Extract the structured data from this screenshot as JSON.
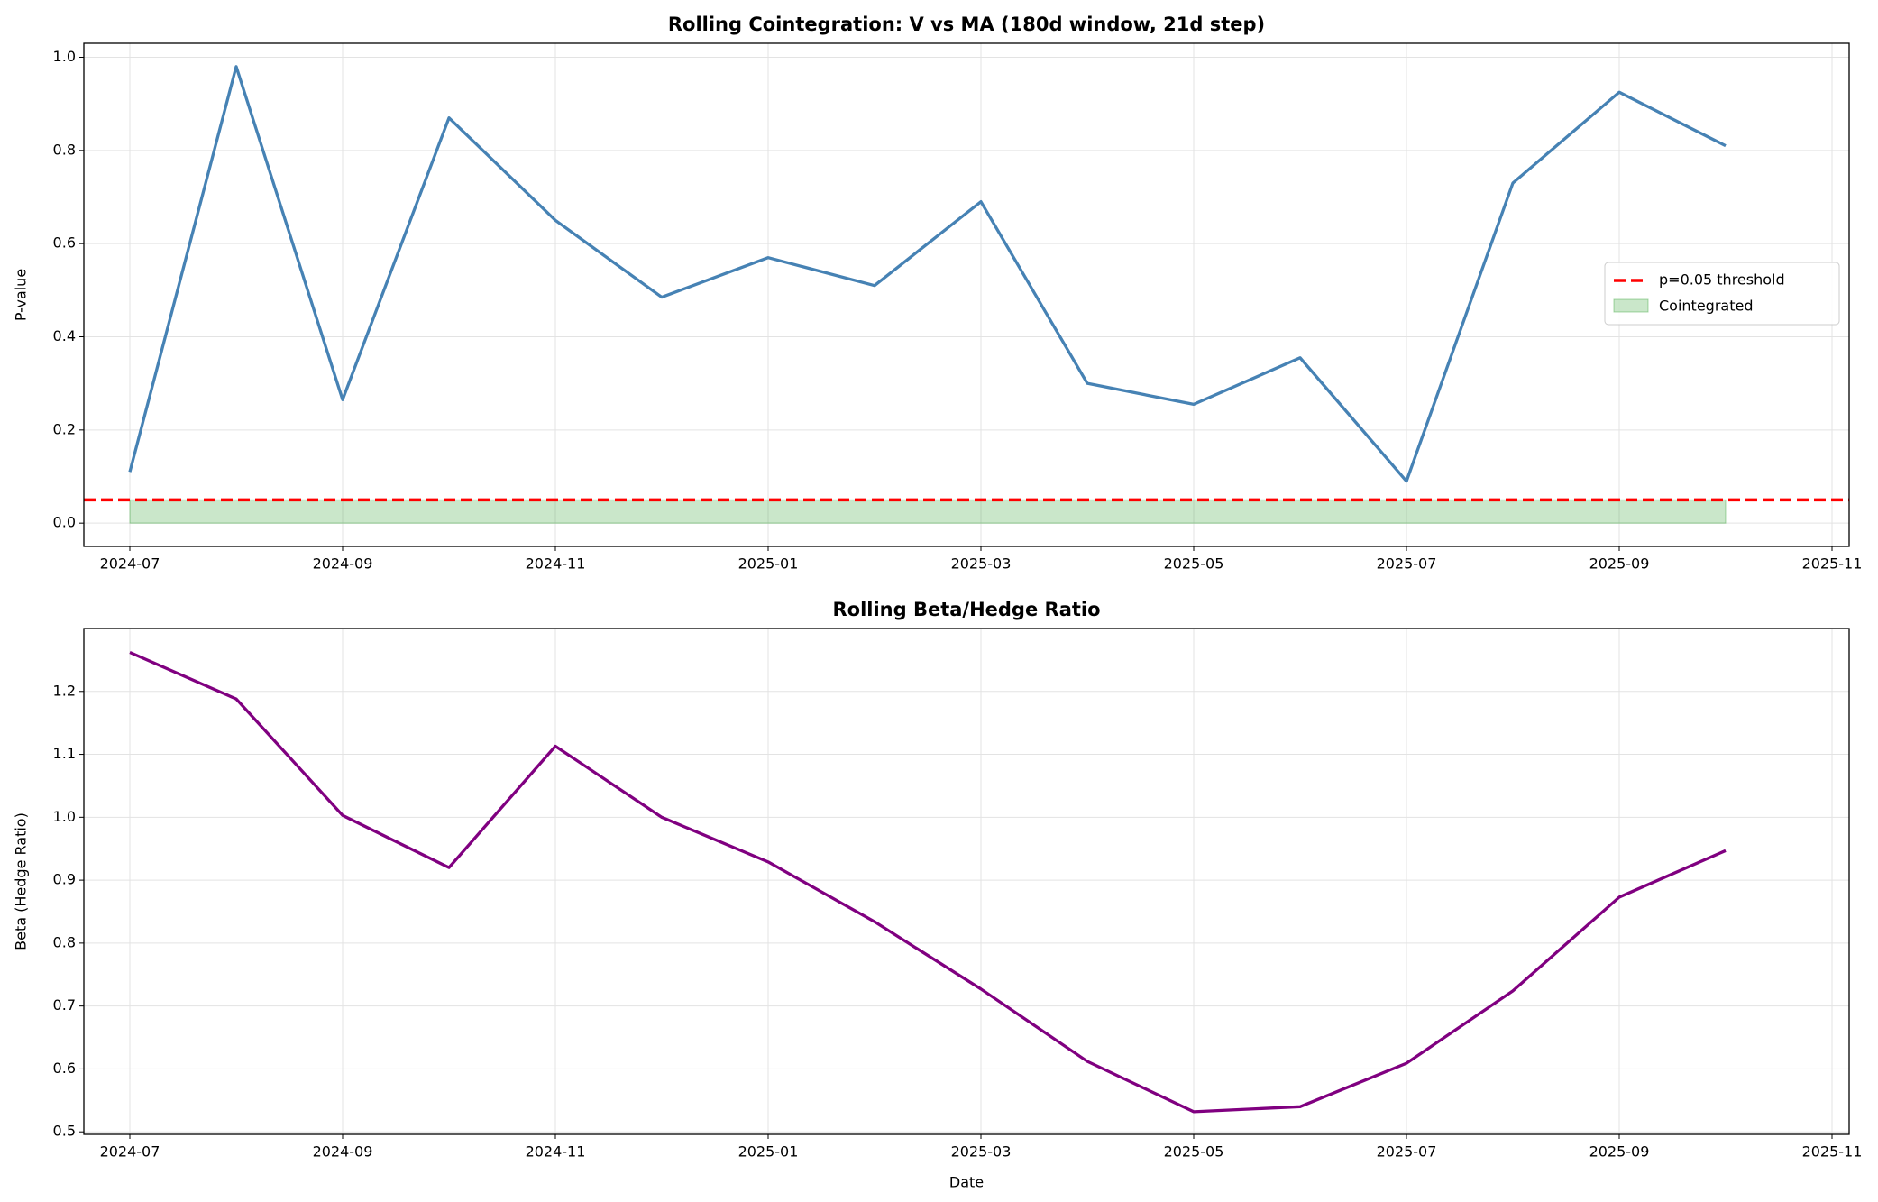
{
  "chart_data": [
    {
      "type": "line",
      "title": "Rolling Cointegration: V vs MA (180d window, 21d step)",
      "y_label": "P-value",
      "x": [
        "2024-07",
        "2024-08",
        "2024-09",
        "2024-10",
        "2024-11",
        "2024-12",
        "2025-01",
        "2025-02",
        "2025-03",
        "2025-04",
        "2025-05",
        "2025-06",
        "2025-07",
        "2025-08",
        "2025-09",
        "2025-10"
      ],
      "series": [
        {
          "name": null,
          "color": "#4682b4",
          "values": [
            0.11,
            0.98,
            0.265,
            0.87,
            0.65,
            0.485,
            0.57,
            0.51,
            0.69,
            0.3,
            0.255,
            0.355,
            0.09,
            0.73,
            0.925,
            0.81
          ]
        }
      ],
      "threshold": {
        "name": "p=0.05 threshold",
        "value": 0.05,
        "color": "#ff0000"
      },
      "band": {
        "name": "Cointegrated",
        "lower": 0,
        "upper": 0.05,
        "color": "#2ca02c"
      },
      "xlim": [
        "2024-07",
        "2025-11"
      ],
      "xticks": [
        "2024-07",
        "2024-09",
        "2024-11",
        "2025-01",
        "2025-03",
        "2025-05",
        "2025-07",
        "2025-09",
        "2025-11"
      ],
      "ylim": [
        -0.05,
        1.03
      ],
      "yticks": [
        {
          "value": 0,
          "label": "0.0"
        },
        0.2,
        0.4,
        0.6,
        0.8,
        {
          "value": 1,
          "label": "1.0"
        }
      ],
      "grid": true,
      "legend": "right"
    },
    {
      "type": "line",
      "title": "Rolling Beta/Hedge Ratio",
      "y_label": "Beta (Hedge Ratio)",
      "x_label": "Date",
      "x": [
        "2024-07",
        "2024-08",
        "2024-09",
        "2024-10",
        "2024-11",
        "2024-12",
        "2025-01",
        "2025-02",
        "2025-03",
        "2025-04",
        "2025-05",
        "2025-06",
        "2025-07",
        "2025-08",
        "2025-09",
        "2025-10"
      ],
      "series": [
        {
          "name": null,
          "color": "#800080",
          "values": [
            1.262,
            1.188,
            1.003,
            0.92,
            1.113,
            1.0,
            0.929,
            0.834,
            0.727,
            0.612,
            0.532,
            0.54,
            0.609,
            0.724,
            0.873,
            0.947
          ]
        }
      ],
      "xlim": [
        "2024-07",
        "2025-11"
      ],
      "xticks": [
        "2024-07",
        "2024-09",
        "2024-11",
        "2025-01",
        "2025-03",
        "2025-05",
        "2025-07",
        "2025-09",
        "2025-11"
      ],
      "ylim": [
        0.496,
        1.3
      ],
      "yticks": [
        0.5,
        0.6,
        0.7,
        0.8,
        0.9,
        {
          "value": 1,
          "label": "1.0"
        },
        1.1,
        1.2
      ],
      "grid": true
    }
  ]
}
